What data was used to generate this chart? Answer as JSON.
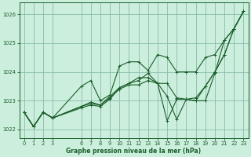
{
  "background_color": "#cceedd",
  "grid_color": "#88bbaa",
  "line_color": "#1a5e2a",
  "xlabel": "Graphe pression niveau de la mer (hPa)",
  "ylim": [
    1021.7,
    1026.4
  ],
  "xlim": [
    -0.5,
    23.5
  ],
  "yticks": [
    1022,
    1023,
    1024,
    1025,
    1026
  ],
  "xticks": [
    0,
    1,
    2,
    3,
    6,
    7,
    8,
    9,
    10,
    11,
    12,
    13,
    14,
    15,
    16,
    17,
    18,
    19,
    20,
    21,
    22,
    23
  ],
  "lines": [
    {
      "x": [
        0,
        1,
        2,
        3,
        6,
        7,
        8,
        9,
        10,
        11,
        12,
        13,
        14,
        15,
        16,
        17,
        18,
        19,
        20,
        21,
        22,
        23
      ],
      "y": [
        1022.6,
        1022.1,
        1022.6,
        1022.4,
        1023.5,
        1023.7,
        1023.0,
        1023.2,
        1024.2,
        1024.35,
        1024.35,
        1024.05,
        1024.6,
        1024.5,
        1024.0,
        1024.0,
        1024.0,
        1024.5,
        1024.6,
        1025.1,
        1025.5,
        1026.1
      ]
    },
    {
      "x": [
        0,
        1,
        2,
        3,
        6,
        7,
        8,
        9,
        10,
        11,
        12,
        13,
        14,
        15,
        16,
        17,
        18,
        19,
        20,
        21,
        22,
        23
      ],
      "y": [
        1022.6,
        1022.1,
        1022.6,
        1022.4,
        1022.8,
        1022.9,
        1022.85,
        1023.1,
        1023.4,
        1023.55,
        1023.55,
        1023.7,
        1023.6,
        1023.6,
        1023.1,
        1023.05,
        1023.0,
        1023.5,
        1024.0,
        1024.6,
        1025.5,
        1026.1
      ]
    },
    {
      "x": [
        0,
        1,
        2,
        3,
        6,
        7,
        8,
        9,
        10,
        11,
        12,
        13,
        14,
        15,
        16,
        17,
        18,
        19,
        20,
        21,
        22,
        23
      ],
      "y": [
        1022.6,
        1022.1,
        1022.6,
        1022.4,
        1022.8,
        1022.95,
        1022.85,
        1023.15,
        1023.45,
        1023.6,
        1023.8,
        1023.8,
        1023.6,
        1023.15,
        1022.35,
        1023.05,
        1023.1,
        1023.5,
        1024.0,
        1024.6,
        1025.5,
        1026.1
      ]
    },
    {
      "x": [
        0,
        1,
        2,
        3,
        6,
        7,
        8,
        9,
        10,
        11,
        12,
        13,
        14,
        15,
        16,
        17,
        18,
        19,
        20,
        21,
        22,
        23
      ],
      "y": [
        1022.6,
        1022.1,
        1022.6,
        1022.4,
        1022.75,
        1022.85,
        1022.8,
        1023.05,
        1023.45,
        1023.6,
        1023.7,
        1023.95,
        1023.6,
        1022.3,
        1023.05,
        1023.05,
        1023.0,
        1023.0,
        1023.95,
        1025.1,
        1025.5,
        1026.1
      ]
    }
  ]
}
